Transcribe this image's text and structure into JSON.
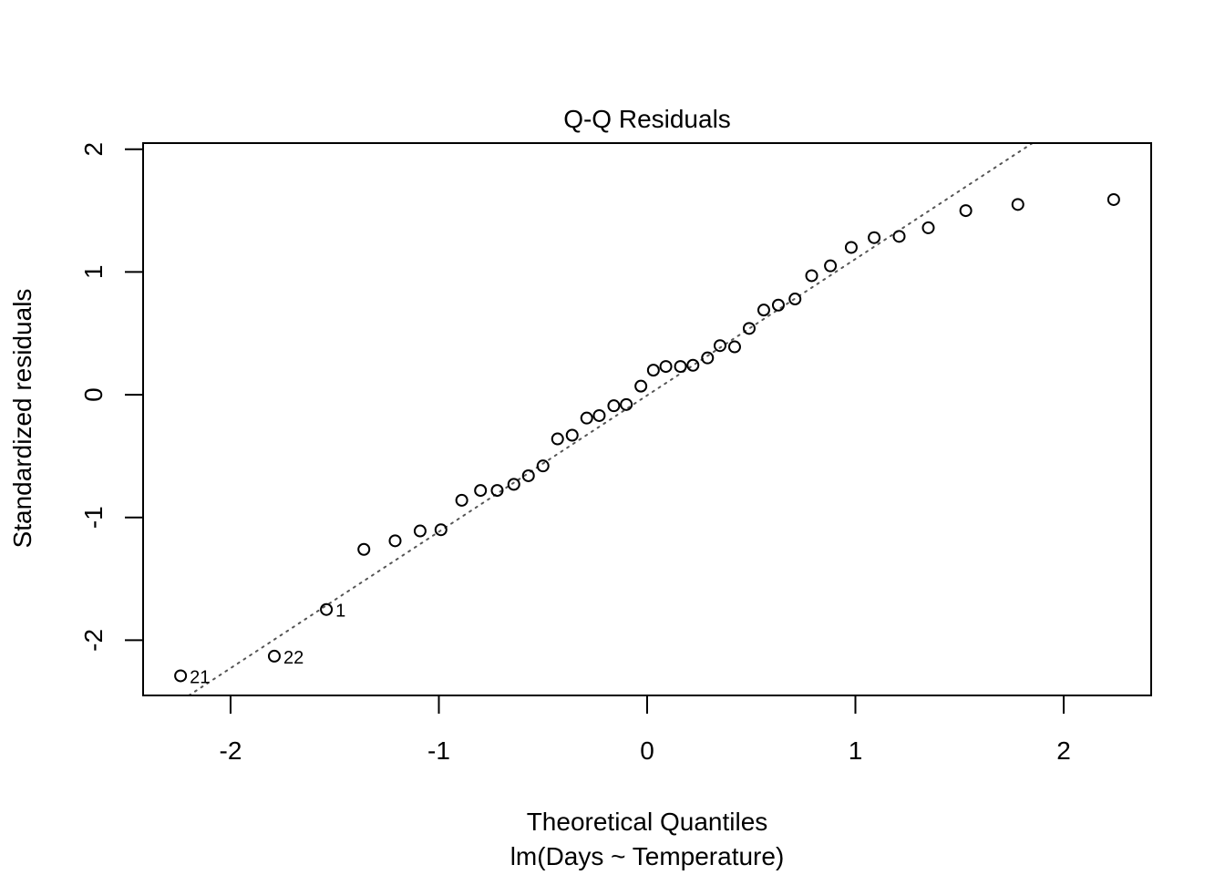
{
  "chart_data": {
    "type": "scatter",
    "title": "Q-Q Residuals",
    "xlabel": "Theoretical Quantiles",
    "subtitle": "lm(Days ~ Temperature)",
    "ylabel": "Standardized residuals",
    "xlim": [
      -2.42,
      2.42
    ],
    "ylim": [
      -2.45,
      2.05
    ],
    "xticks": [
      -2,
      -1,
      0,
      1,
      2
    ],
    "xtick_labels": [
      "-2",
      "-1",
      "0",
      "1",
      "2"
    ],
    "yticks": [
      -2,
      -1,
      0,
      1,
      2
    ],
    "ytick_labels": [
      "-2",
      "-1",
      "0",
      "1",
      "2"
    ],
    "grid": false,
    "reference_line": {
      "style": "dotted",
      "points": [
        [
          -2.2,
          -2.45
        ],
        [
          1.85,
          2.05
        ]
      ]
    },
    "points": [
      {
        "x": -2.24,
        "y": -2.29
      },
      {
        "x": -1.79,
        "y": -2.13
      },
      {
        "x": -1.54,
        "y": -1.75
      },
      {
        "x": -1.36,
        "y": -1.26
      },
      {
        "x": -1.21,
        "y": -1.19
      },
      {
        "x": -1.09,
        "y": -1.11
      },
      {
        "x": -0.99,
        "y": -1.1
      },
      {
        "x": -0.89,
        "y": -0.86
      },
      {
        "x": -0.8,
        "y": -0.78
      },
      {
        "x": -0.72,
        "y": -0.78
      },
      {
        "x": -0.64,
        "y": -0.73
      },
      {
        "x": -0.57,
        "y": -0.66
      },
      {
        "x": -0.5,
        "y": -0.58
      },
      {
        "x": -0.43,
        "y": -0.36
      },
      {
        "x": -0.36,
        "y": -0.33
      },
      {
        "x": -0.29,
        "y": -0.19
      },
      {
        "x": -0.23,
        "y": -0.17
      },
      {
        "x": -0.16,
        "y": -0.09
      },
      {
        "x": -0.1,
        "y": -0.08
      },
      {
        "x": -0.03,
        "y": 0.07
      },
      {
        "x": 0.03,
        "y": 0.2
      },
      {
        "x": 0.09,
        "y": 0.23
      },
      {
        "x": 0.16,
        "y": 0.23
      },
      {
        "x": 0.22,
        "y": 0.24
      },
      {
        "x": 0.29,
        "y": 0.3
      },
      {
        "x": 0.35,
        "y": 0.4
      },
      {
        "x": 0.42,
        "y": 0.39
      },
      {
        "x": 0.49,
        "y": 0.54
      },
      {
        "x": 0.56,
        "y": 0.69
      },
      {
        "x": 0.63,
        "y": 0.73
      },
      {
        "x": 0.71,
        "y": 0.78
      },
      {
        "x": 0.79,
        "y": 0.97
      },
      {
        "x": 0.88,
        "y": 1.05
      },
      {
        "x": 0.98,
        "y": 1.2
      },
      {
        "x": 1.09,
        "y": 1.28
      },
      {
        "x": 1.21,
        "y": 1.29
      },
      {
        "x": 1.35,
        "y": 1.36
      },
      {
        "x": 1.53,
        "y": 1.5
      },
      {
        "x": 1.78,
        "y": 1.55
      },
      {
        "x": 2.24,
        "y": 1.59
      }
    ],
    "point_labels": [
      {
        "point_index": 0,
        "text": "21"
      },
      {
        "point_index": 1,
        "text": "22"
      },
      {
        "point_index": 2,
        "text": "1"
      }
    ]
  }
}
